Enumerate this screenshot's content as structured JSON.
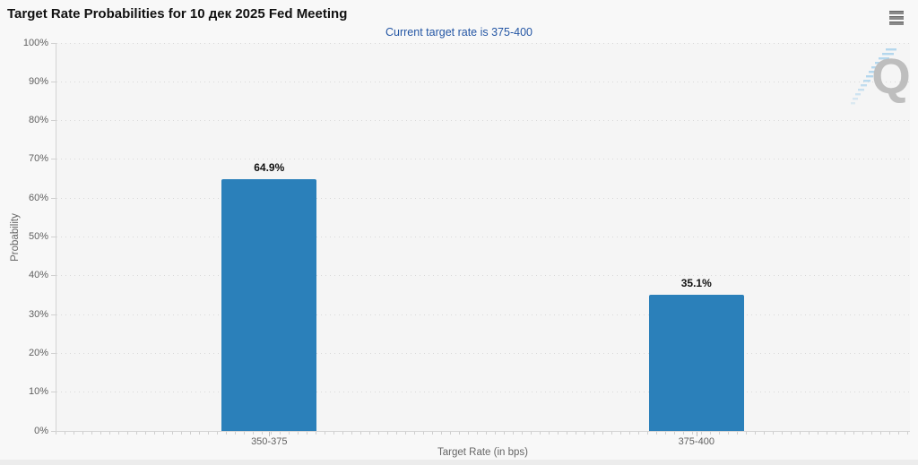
{
  "chart_data": {
    "type": "bar",
    "title": "Target Rate Probabilities for 10 дек 2025 Fed Meeting",
    "subtitle": "Current target rate is 375-400",
    "categories": [
      "350-375",
      "375-400"
    ],
    "values": [
      64.9,
      35.1
    ],
    "data_labels": [
      "64.9%",
      "35.1%"
    ],
    "xlabel": "Target Rate (in bps)",
    "ylabel": "Probability",
    "ylim": [
      0,
      100
    ],
    "ytick_interval": 10,
    "ytick_labels": [
      "0%",
      "10%",
      "20%",
      "30%",
      "40%",
      "50%",
      "60%",
      "70%",
      "80%",
      "90%",
      "100%"
    ],
    "grid": "dotted-horizontal",
    "legend": "none",
    "bar_color": "#2b80ba",
    "subtitle_color": "#2456a4"
  },
  "icons": {
    "menu": "hamburger-icon",
    "watermark_letter": "Q"
  }
}
